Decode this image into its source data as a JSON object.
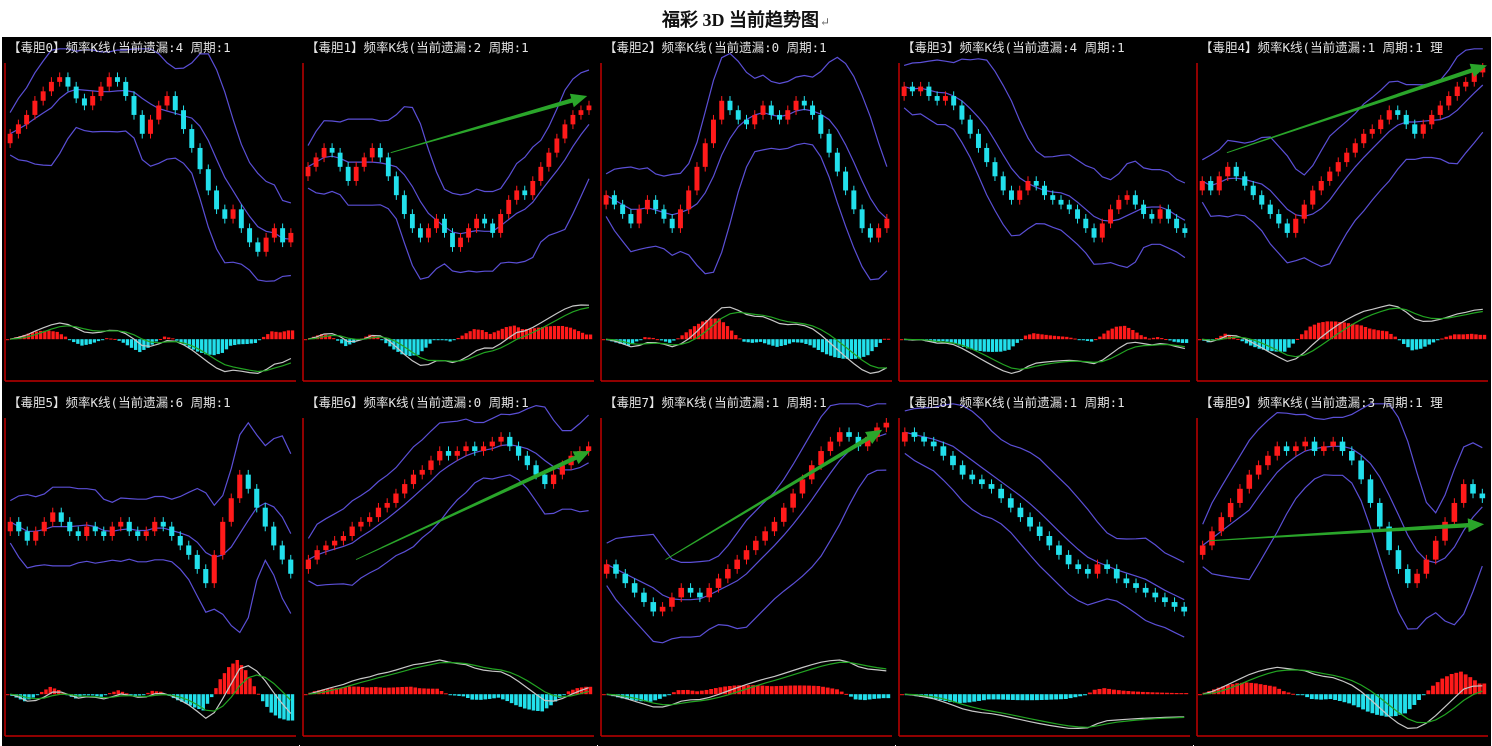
{
  "page": {
    "title": "福彩 3D 当前趋势图",
    "title_mark": "↵"
  },
  "colors": {
    "background": "#000000",
    "up_candle": "#ff1a1a",
    "down_candle": "#22e0ec",
    "bands": "#5b4fd6",
    "frame": "#c00000",
    "macd_dif": "#c8c8c8",
    "macd_dea": "#22a422",
    "trend_arrow": "#2aa52a"
  },
  "chart_data": [
    {
      "type": "candlestick",
      "title": "【毒胆0】频率K线(当前遗漏:4 周期:1",
      "x": "period",
      "close": [
        0.7,
        0.74,
        0.78,
        0.84,
        0.88,
        0.92,
        0.94,
        0.9,
        0.85,
        0.82,
        0.86,
        0.9,
        0.94,
        0.92,
        0.86,
        0.78,
        0.7,
        0.76,
        0.82,
        0.86,
        0.8,
        0.72,
        0.64,
        0.55,
        0.46,
        0.38,
        0.34,
        0.38,
        0.3,
        0.24,
        0.2,
        0.26,
        0.3,
        0.24,
        0.28
      ],
      "trend_arrow": null
    },
    {
      "type": "candlestick",
      "title": "【毒胆1】频率K线(当前遗漏:2 周期:1",
      "x": "period",
      "close": [
        0.56,
        0.6,
        0.64,
        0.62,
        0.56,
        0.5,
        0.56,
        0.6,
        0.64,
        0.6,
        0.52,
        0.44,
        0.36,
        0.3,
        0.26,
        0.3,
        0.34,
        0.28,
        0.22,
        0.26,
        0.3,
        0.34,
        0.32,
        0.28,
        0.36,
        0.42,
        0.46,
        0.44,
        0.5,
        0.56,
        0.62,
        0.68,
        0.74,
        0.78,
        0.8,
        0.82
      ],
      "trend_arrow": {
        "from": [
          0.3,
          0.62
        ],
        "to": [
          0.98,
          0.86
        ]
      }
    },
    {
      "type": "candlestick",
      "title": "【毒胆2】频率K线(当前遗漏:0 周期:1",
      "x": "period",
      "close": [
        0.44,
        0.4,
        0.36,
        0.32,
        0.38,
        0.42,
        0.38,
        0.34,
        0.3,
        0.38,
        0.46,
        0.56,
        0.66,
        0.76,
        0.84,
        0.8,
        0.76,
        0.74,
        0.78,
        0.82,
        0.78,
        0.76,
        0.8,
        0.84,
        0.82,
        0.78,
        0.7,
        0.62,
        0.54,
        0.46,
        0.38,
        0.3,
        0.26,
        0.3,
        0.34
      ],
      "trend_arrow": null
    },
    {
      "type": "candlestick",
      "title": "【毒胆3】频率K线(当前遗漏:4 周期:1",
      "x": "period",
      "close": [
        0.9,
        0.88,
        0.9,
        0.86,
        0.84,
        0.86,
        0.82,
        0.76,
        0.7,
        0.64,
        0.58,
        0.52,
        0.46,
        0.42,
        0.46,
        0.5,
        0.48,
        0.44,
        0.42,
        0.4,
        0.38,
        0.34,
        0.3,
        0.26,
        0.32,
        0.38,
        0.42,
        0.44,
        0.4,
        0.36,
        0.34,
        0.38,
        0.34,
        0.3,
        0.28
      ],
      "trend_arrow": null
    },
    {
      "type": "candlestick",
      "title": "【毒胆4】频率K线(当前遗漏:1 周期:1 理",
      "x": "period",
      "close": [
        0.5,
        0.46,
        0.52,
        0.56,
        0.52,
        0.48,
        0.44,
        0.4,
        0.36,
        0.32,
        0.28,
        0.34,
        0.4,
        0.46,
        0.5,
        0.54,
        0.58,
        0.62,
        0.66,
        0.7,
        0.72,
        0.76,
        0.8,
        0.78,
        0.74,
        0.7,
        0.74,
        0.78,
        0.82,
        0.86,
        0.9,
        0.92,
        0.96,
        0.98
      ],
      "trend_arrow": {
        "from": [
          0.1,
          0.62
        ],
        "to": [
          1.0,
          0.99
        ]
      }
    },
    {
      "type": "candlestick",
      "title": "【毒胆5】频率K线(当前遗漏:6 周期:1",
      "x": "period",
      "close": [
        0.56,
        0.52,
        0.48,
        0.52,
        0.56,
        0.6,
        0.56,
        0.52,
        0.5,
        0.54,
        0.52,
        0.5,
        0.54,
        0.56,
        0.52,
        0.5,
        0.52,
        0.56,
        0.54,
        0.5,
        0.46,
        0.42,
        0.36,
        0.3,
        0.42,
        0.56,
        0.66,
        0.76,
        0.7,
        0.62,
        0.54,
        0.46,
        0.4,
        0.34
      ],
      "trend_arrow": null
    },
    {
      "type": "candlestick",
      "title": "【毒胆6】频率K线(当前遗漏:0 周期:1",
      "x": "period",
      "close": [
        0.4,
        0.44,
        0.46,
        0.48,
        0.5,
        0.54,
        0.56,
        0.58,
        0.62,
        0.64,
        0.68,
        0.72,
        0.76,
        0.78,
        0.82,
        0.86,
        0.84,
        0.86,
        0.88,
        0.86,
        0.88,
        0.9,
        0.92,
        0.88,
        0.84,
        0.8,
        0.76,
        0.72,
        0.76,
        0.8,
        0.84,
        0.86,
        0.88
      ],
      "trend_arrow": {
        "from": [
          0.18,
          0.4
        ],
        "to": [
          0.99,
          0.86
        ]
      }
    },
    {
      "type": "candlestick",
      "title": "【毒胆7】频率K线(当前遗漏:1 周期:1",
      "x": "period",
      "close": [
        0.38,
        0.34,
        0.3,
        0.26,
        0.22,
        0.18,
        0.2,
        0.24,
        0.28,
        0.26,
        0.24,
        0.28,
        0.32,
        0.36,
        0.4,
        0.44,
        0.48,
        0.52,
        0.56,
        0.62,
        0.68,
        0.74,
        0.8,
        0.86,
        0.9,
        0.94,
        0.92,
        0.88,
        0.92,
        0.96,
        0.98
      ],
      "trend_arrow": {
        "from": [
          0.22,
          0.4
        ],
        "to": [
          0.97,
          0.95
        ]
      }
    },
    {
      "type": "candlestick",
      "title": "【毒胆8】频率K线(当前遗漏:1 周期:1",
      "x": "period",
      "close": [
        0.94,
        0.92,
        0.9,
        0.88,
        0.84,
        0.8,
        0.76,
        0.74,
        0.72,
        0.7,
        0.66,
        0.62,
        0.58,
        0.54,
        0.5,
        0.46,
        0.42,
        0.38,
        0.36,
        0.34,
        0.38,
        0.36,
        0.32,
        0.3,
        0.28,
        0.26,
        0.24,
        0.22,
        0.2,
        0.18
      ],
      "trend_arrow": null
    },
    {
      "type": "candlestick",
      "title": "【毒胆9】频率K线(当前遗漏:3 周期:1 理",
      "x": "period",
      "close": [
        0.46,
        0.52,
        0.58,
        0.64,
        0.7,
        0.76,
        0.8,
        0.84,
        0.88,
        0.86,
        0.88,
        0.9,
        0.86,
        0.88,
        0.9,
        0.86,
        0.82,
        0.74,
        0.64,
        0.54,
        0.44,
        0.36,
        0.3,
        0.34,
        0.4,
        0.48,
        0.56,
        0.64,
        0.72,
        0.68,
        0.66
      ],
      "trend_arrow": {
        "from": [
          0.04,
          0.48
        ],
        "to": [
          0.99,
          0.55
        ]
      }
    }
  ]
}
